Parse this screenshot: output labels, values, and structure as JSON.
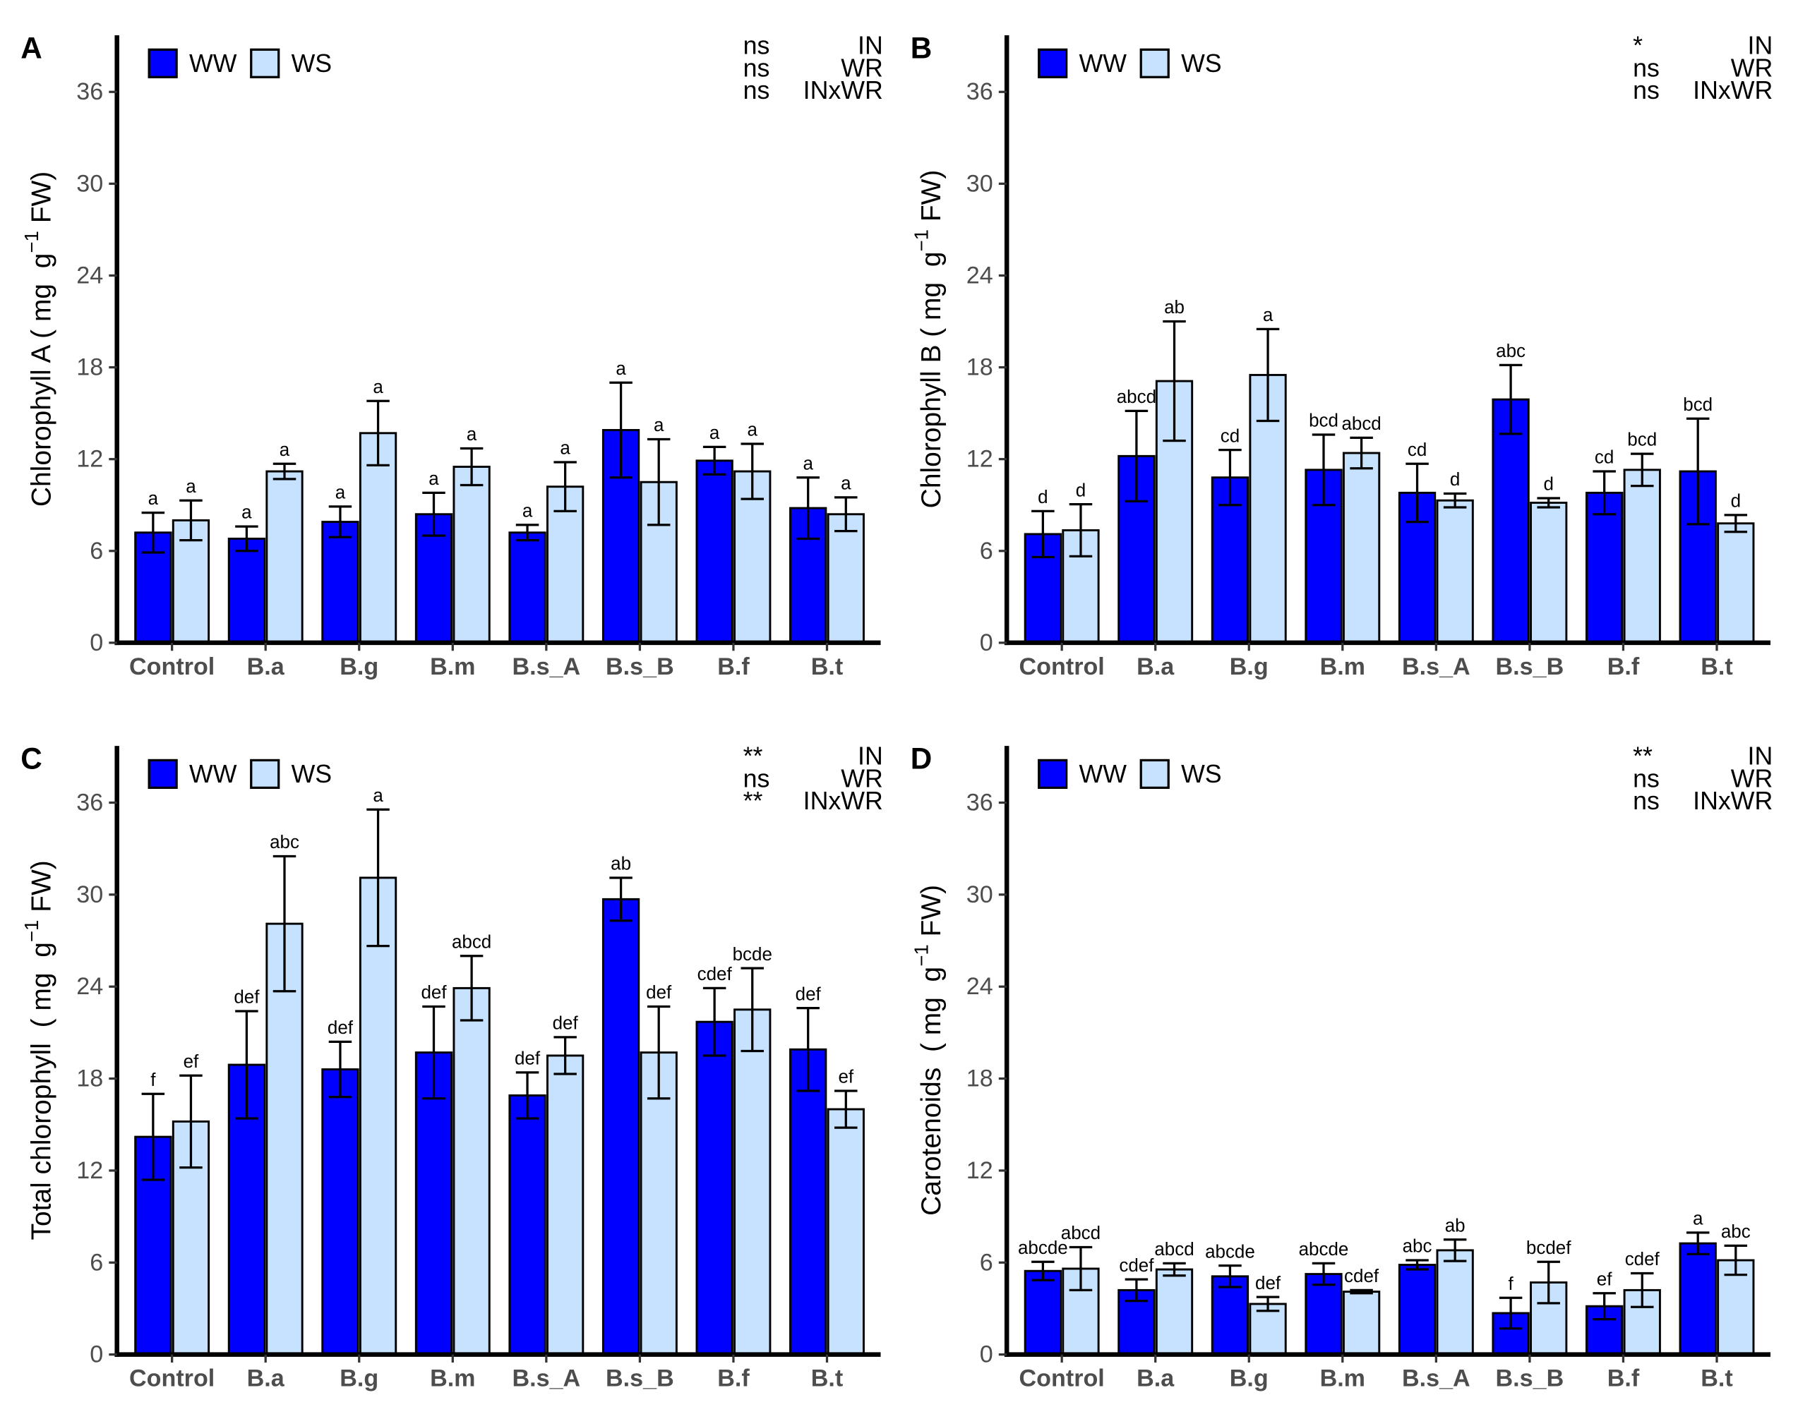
{
  "chart_data": [
    {
      "panel": "A",
      "type": "bar",
      "categories": [
        "Control",
        "B.a",
        "B.g",
        "B.m",
        "B.s_A",
        "B.s_B",
        "B.f",
        "B.t"
      ],
      "series": [
        {
          "name": "WW",
          "color": "#0000FF",
          "values": [
            7.2,
            6.8,
            7.9,
            8.4,
            7.2,
            13.9,
            11.9,
            8.8
          ],
          "errors": [
            1.3,
            0.8,
            1.0,
            1.4,
            0.5,
            3.1,
            0.9,
            2.0
          ],
          "letters": [
            "a",
            "a",
            "a",
            "a",
            "a",
            "a",
            "a",
            "a"
          ]
        },
        {
          "name": "WS",
          "color": "#C6E2FF",
          "values": [
            8.0,
            11.2,
            13.7,
            11.5,
            10.2,
            10.5,
            11.2,
            8.4
          ],
          "errors": [
            1.3,
            0.5,
            2.1,
            1.2,
            1.6,
            2.8,
            1.8,
            1.1
          ],
          "letters": [
            "a",
            "a",
            "a",
            "a",
            "a",
            "a",
            "a",
            "a"
          ]
        }
      ],
      "ylabel": {
        "main": "Chlorophyll A ( mg  g",
        "sup": "−1",
        "end": " FW)"
      },
      "ylim": [
        0,
        39.7
      ],
      "yticks": [
        0,
        6,
        12,
        18,
        24,
        30,
        36
      ],
      "legend": "top-left",
      "significance": [
        {
          "mark": "ns",
          "term": "IN"
        },
        {
          "mark": "ns",
          "term": "WR"
        },
        {
          "mark": "ns",
          "term": "INxWR"
        }
      ]
    },
    {
      "panel": "B",
      "type": "bar",
      "categories": [
        "Control",
        "B.a",
        "B.g",
        "B.m",
        "B.s_A",
        "B.s_B",
        "B.f",
        "B.t"
      ],
      "series": [
        {
          "name": "WW",
          "color": "#0000FF",
          "values": [
            7.1,
            12.2,
            10.8,
            11.3,
            9.8,
            15.9,
            9.8,
            11.2
          ],
          "errors": [
            1.5,
            2.95,
            1.8,
            2.3,
            1.9,
            2.25,
            1.4,
            3.45
          ],
          "letters": [
            "d",
            "abcd",
            "cd",
            "bcd",
            "cd",
            "abc",
            "cd",
            "bcd"
          ]
        },
        {
          "name": "WS",
          "color": "#C6E2FF",
          "values": [
            7.35,
            17.1,
            17.5,
            12.4,
            9.3,
            9.15,
            11.3,
            7.8
          ],
          "errors": [
            1.7,
            3.9,
            3.0,
            1.0,
            0.45,
            0.3,
            1.05,
            0.55
          ],
          "letters": [
            "d",
            "ab",
            "a",
            "abcd",
            "d",
            "d",
            "bcd",
            "d"
          ]
        }
      ],
      "ylabel": {
        "main": "Chlorophyll B ( mg  g",
        "sup": "−1",
        "end": " FW)"
      },
      "ylim": [
        0,
        39.7
      ],
      "yticks": [
        0,
        6,
        12,
        18,
        24,
        30,
        36
      ],
      "legend": "top-left",
      "significance": [
        {
          "mark": "*",
          "term": "IN"
        },
        {
          "mark": "ns",
          "term": "WR"
        },
        {
          "mark": "ns",
          "term": "INxWR"
        }
      ]
    },
    {
      "panel": "C",
      "type": "bar",
      "categories": [
        "Control",
        "B.a",
        "B.g",
        "B.m",
        "B.s_A",
        "B.s_B",
        "B.f",
        "B.t"
      ],
      "series": [
        {
          "name": "WW",
          "color": "#0000FF",
          "values": [
            14.2,
            18.9,
            18.6,
            19.7,
            16.9,
            29.7,
            21.7,
            19.9
          ],
          "errors": [
            2.8,
            3.5,
            1.8,
            3.0,
            1.5,
            1.4,
            2.2,
            2.7
          ],
          "letters": [
            "f",
            "def",
            "def",
            "def",
            "def",
            "ab",
            "cdef",
            "def"
          ]
        },
        {
          "name": "WS",
          "color": "#C6E2FF",
          "values": [
            15.2,
            28.1,
            31.1,
            23.9,
            19.5,
            19.7,
            22.5,
            16.0
          ],
          "errors": [
            3.0,
            4.4,
            4.45,
            2.1,
            1.2,
            3.0,
            2.7,
            1.2
          ],
          "letters": [
            "ef",
            "abc",
            "a",
            "abcd",
            "def",
            "def",
            "bcde",
            "ef"
          ]
        }
      ],
      "ylabel": {
        "main": "Total chlorophyll  ( mg  g",
        "sup": "−1",
        "end": " FW)"
      },
      "ylim": [
        0,
        39.7
      ],
      "yticks": [
        0,
        6,
        12,
        18,
        24,
        30,
        36
      ],
      "legend": "top-left",
      "significance": [
        {
          "mark": "**",
          "term": "IN"
        },
        {
          "mark": "ns",
          "term": "WR"
        },
        {
          "mark": "**",
          "term": "INxWR"
        }
      ]
    },
    {
      "panel": "D",
      "type": "bar",
      "categories": [
        "Control",
        "B.a",
        "B.g",
        "B.m",
        "B.s_A",
        "B.s_B",
        "B.f",
        "B.t"
      ],
      "series": [
        {
          "name": "WW",
          "color": "#0000FF",
          "values": [
            5.45,
            4.2,
            5.1,
            5.25,
            5.85,
            2.7,
            3.15,
            7.25
          ],
          "errors": [
            0.6,
            0.7,
            0.7,
            0.7,
            0.3,
            1.0,
            0.85,
            0.7
          ],
          "letters": [
            "abcde",
            "cdef",
            "abcde",
            "abcde",
            "abc",
            "f",
            "ef",
            "a"
          ]
        },
        {
          "name": "WS",
          "color": "#C6E2FF",
          "values": [
            5.6,
            5.55,
            3.3,
            4.1,
            6.8,
            4.7,
            4.2,
            6.15
          ],
          "errors": [
            1.4,
            0.4,
            0.45,
            0.1,
            0.7,
            1.35,
            1.1,
            0.95
          ],
          "letters": [
            "abcd",
            "abcd",
            "def",
            "cdef",
            "ab",
            "bcdef",
            "cdef",
            "abc"
          ]
        }
      ],
      "ylabel": {
        "main": "Carotenoids  ( mg  g",
        "sup": "−1",
        "end": " FW)"
      },
      "ylim": [
        0,
        39.7
      ],
      "yticks": [
        0,
        6,
        12,
        18,
        24,
        30,
        36
      ],
      "legend": "top-left",
      "significance": [
        {
          "mark": "**",
          "term": "IN"
        },
        {
          "mark": "ns",
          "term": "WR"
        },
        {
          "mark": "ns",
          "term": "INxWR"
        }
      ]
    }
  ]
}
